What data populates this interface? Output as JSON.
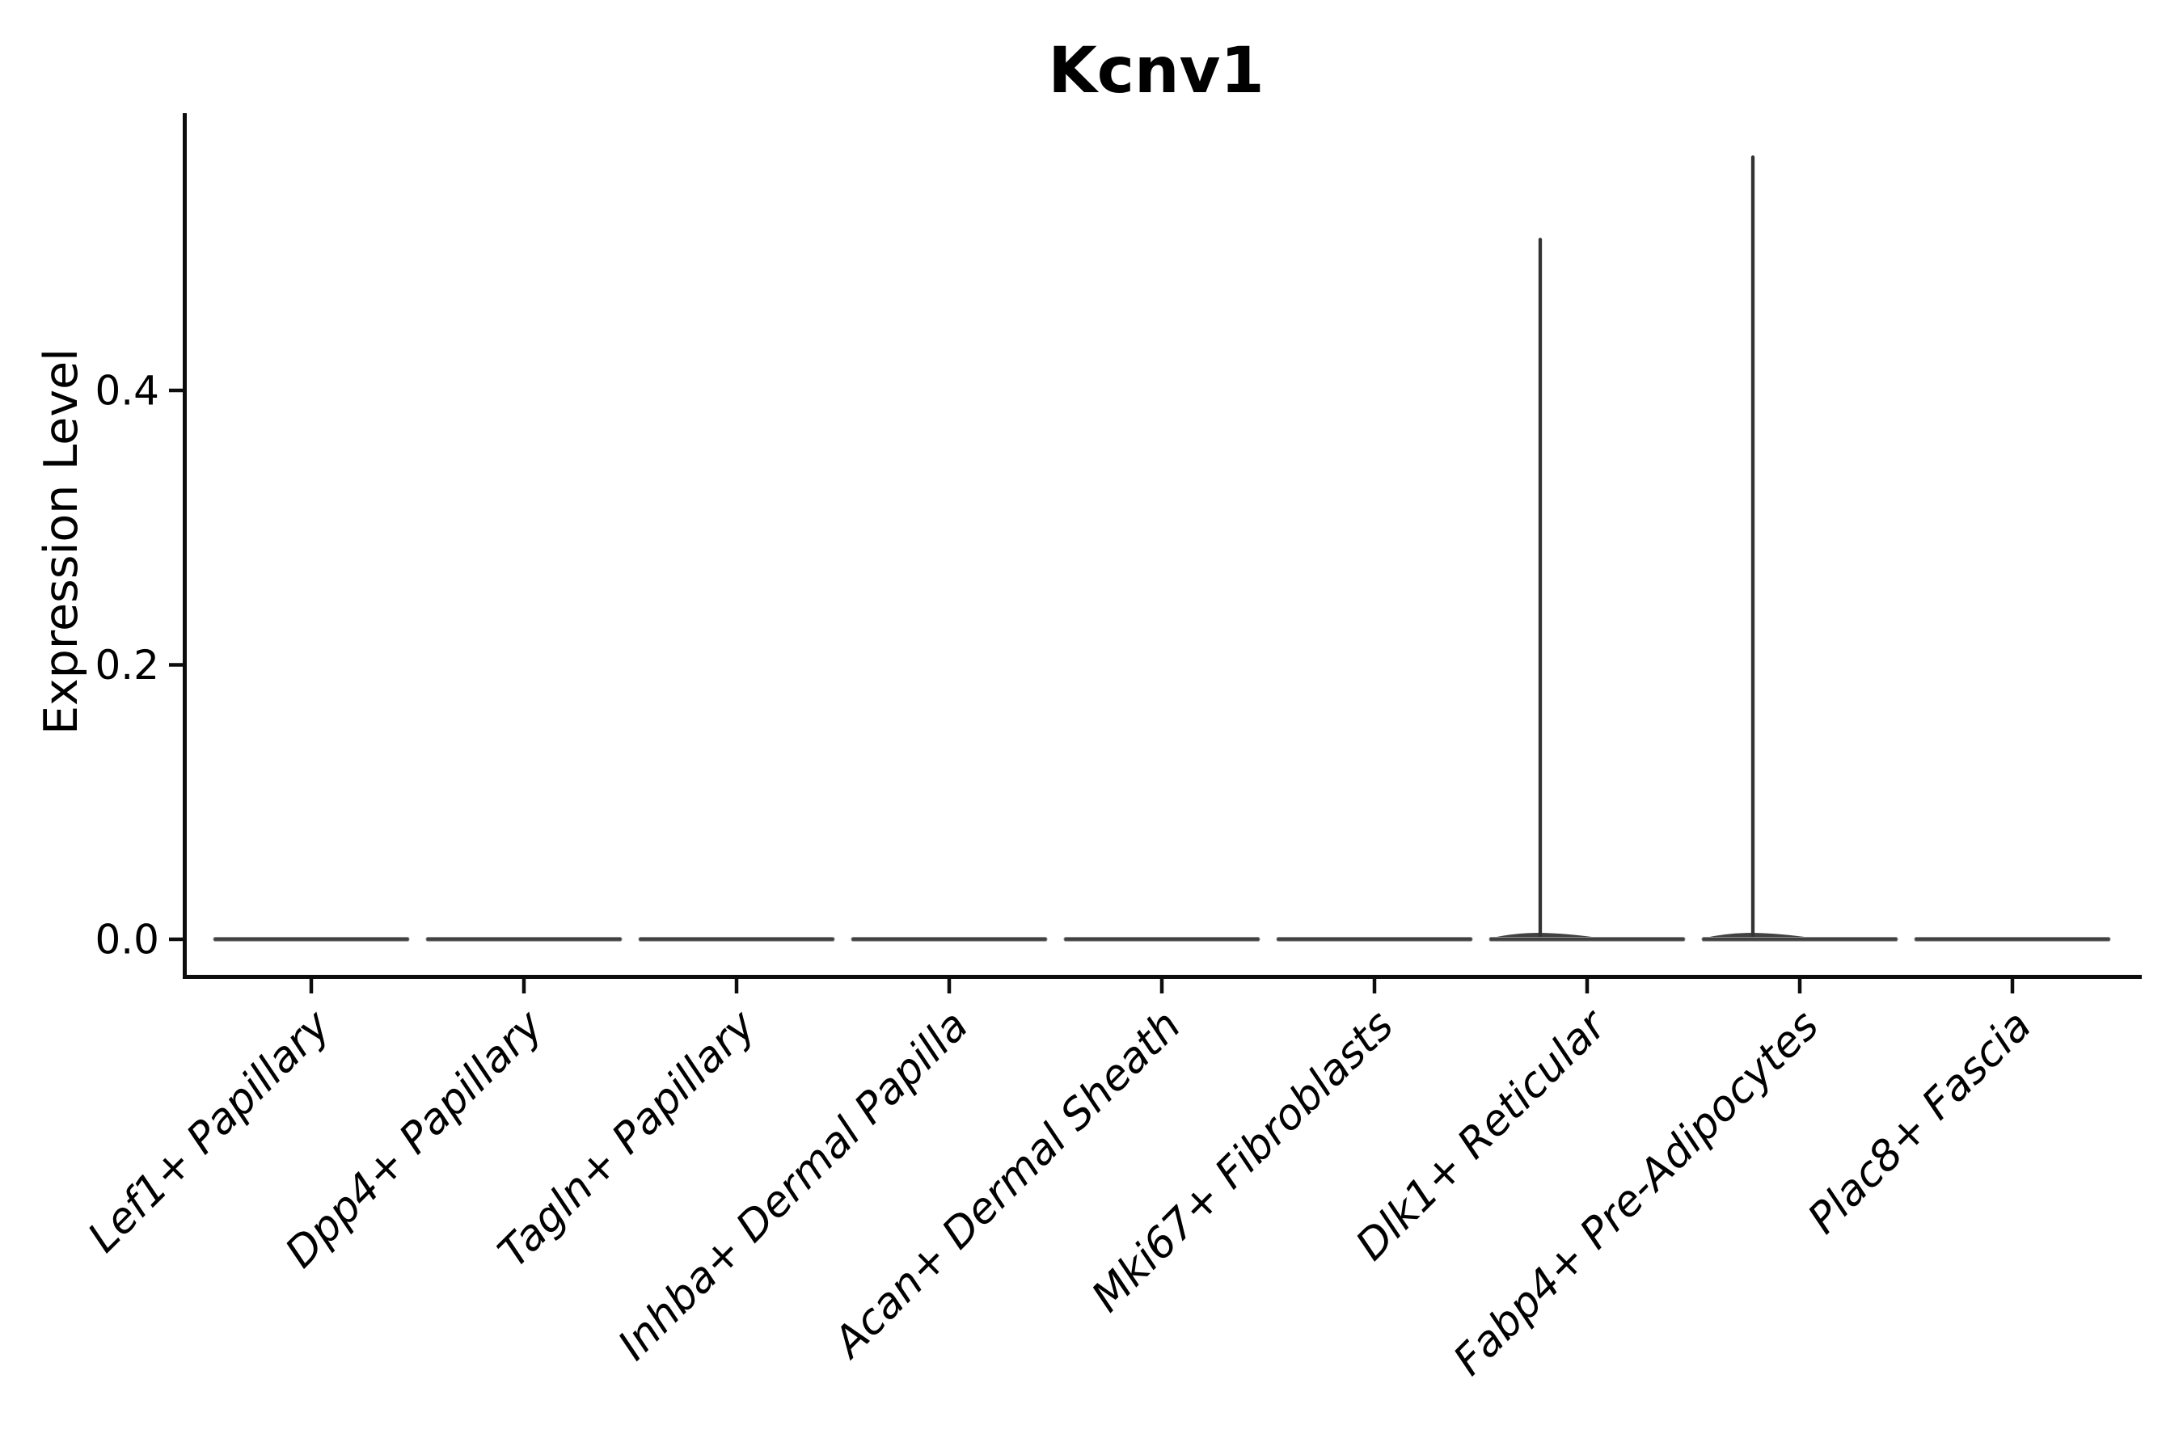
{
  "figure": {
    "background": "#ffffff"
  },
  "chart_data": {
    "type": "violin",
    "title": "Kcnv1",
    "xlabel": "",
    "ylabel": "Expression Level",
    "categories": [
      "Lef1+ Papillary",
      "Dpp4+ Papillary",
      "Tagln+ Papillary",
      "Inhba+ Dermal Papilla",
      "Acan+ Dermal Sheath",
      "Mki67+ Fibroblasts",
      "Dlk1+ Reticular",
      "Fabp4+ Pre-Adipocytes",
      "Plac8+ Fascia"
    ],
    "series": [
      {
        "name": "max_expression",
        "values": [
          0,
          0,
          0,
          0,
          0,
          0,
          0.51,
          0.57,
          0
        ]
      },
      {
        "name": "median_expression",
        "values": [
          0,
          0,
          0,
          0,
          0,
          0,
          0,
          0,
          0
        ]
      }
    ],
    "violin_description": "All nine violins are flat bars at expression 0; Dlk1+ Reticular and Fabp4+ Pre-Adipocytes additionally show a thin density tail (spike) rising to their max values with a slight bump at the base, offset just left of the category center.",
    "tail_categories": [
      "Dlk1+ Reticular",
      "Fabp4+ Pre-Adipocytes"
    ],
    "ytick_labels": [
      "0.0",
      "0.2",
      "0.4"
    ],
    "ytick_values": [
      0.0,
      0.2,
      0.4
    ],
    "ylim": [
      -0.028,
      0.6
    ],
    "xtick_rotation_deg": 45,
    "grid": false,
    "legend": null
  },
  "style": {
    "background": "#ffffff",
    "axis_color": "#0d0d0d",
    "tick_color": "#0d0d0d",
    "text_color": "#000000",
    "violin_fill": "#414141",
    "violin_edge": "#8f8f8f",
    "spike_color": "#333333"
  }
}
